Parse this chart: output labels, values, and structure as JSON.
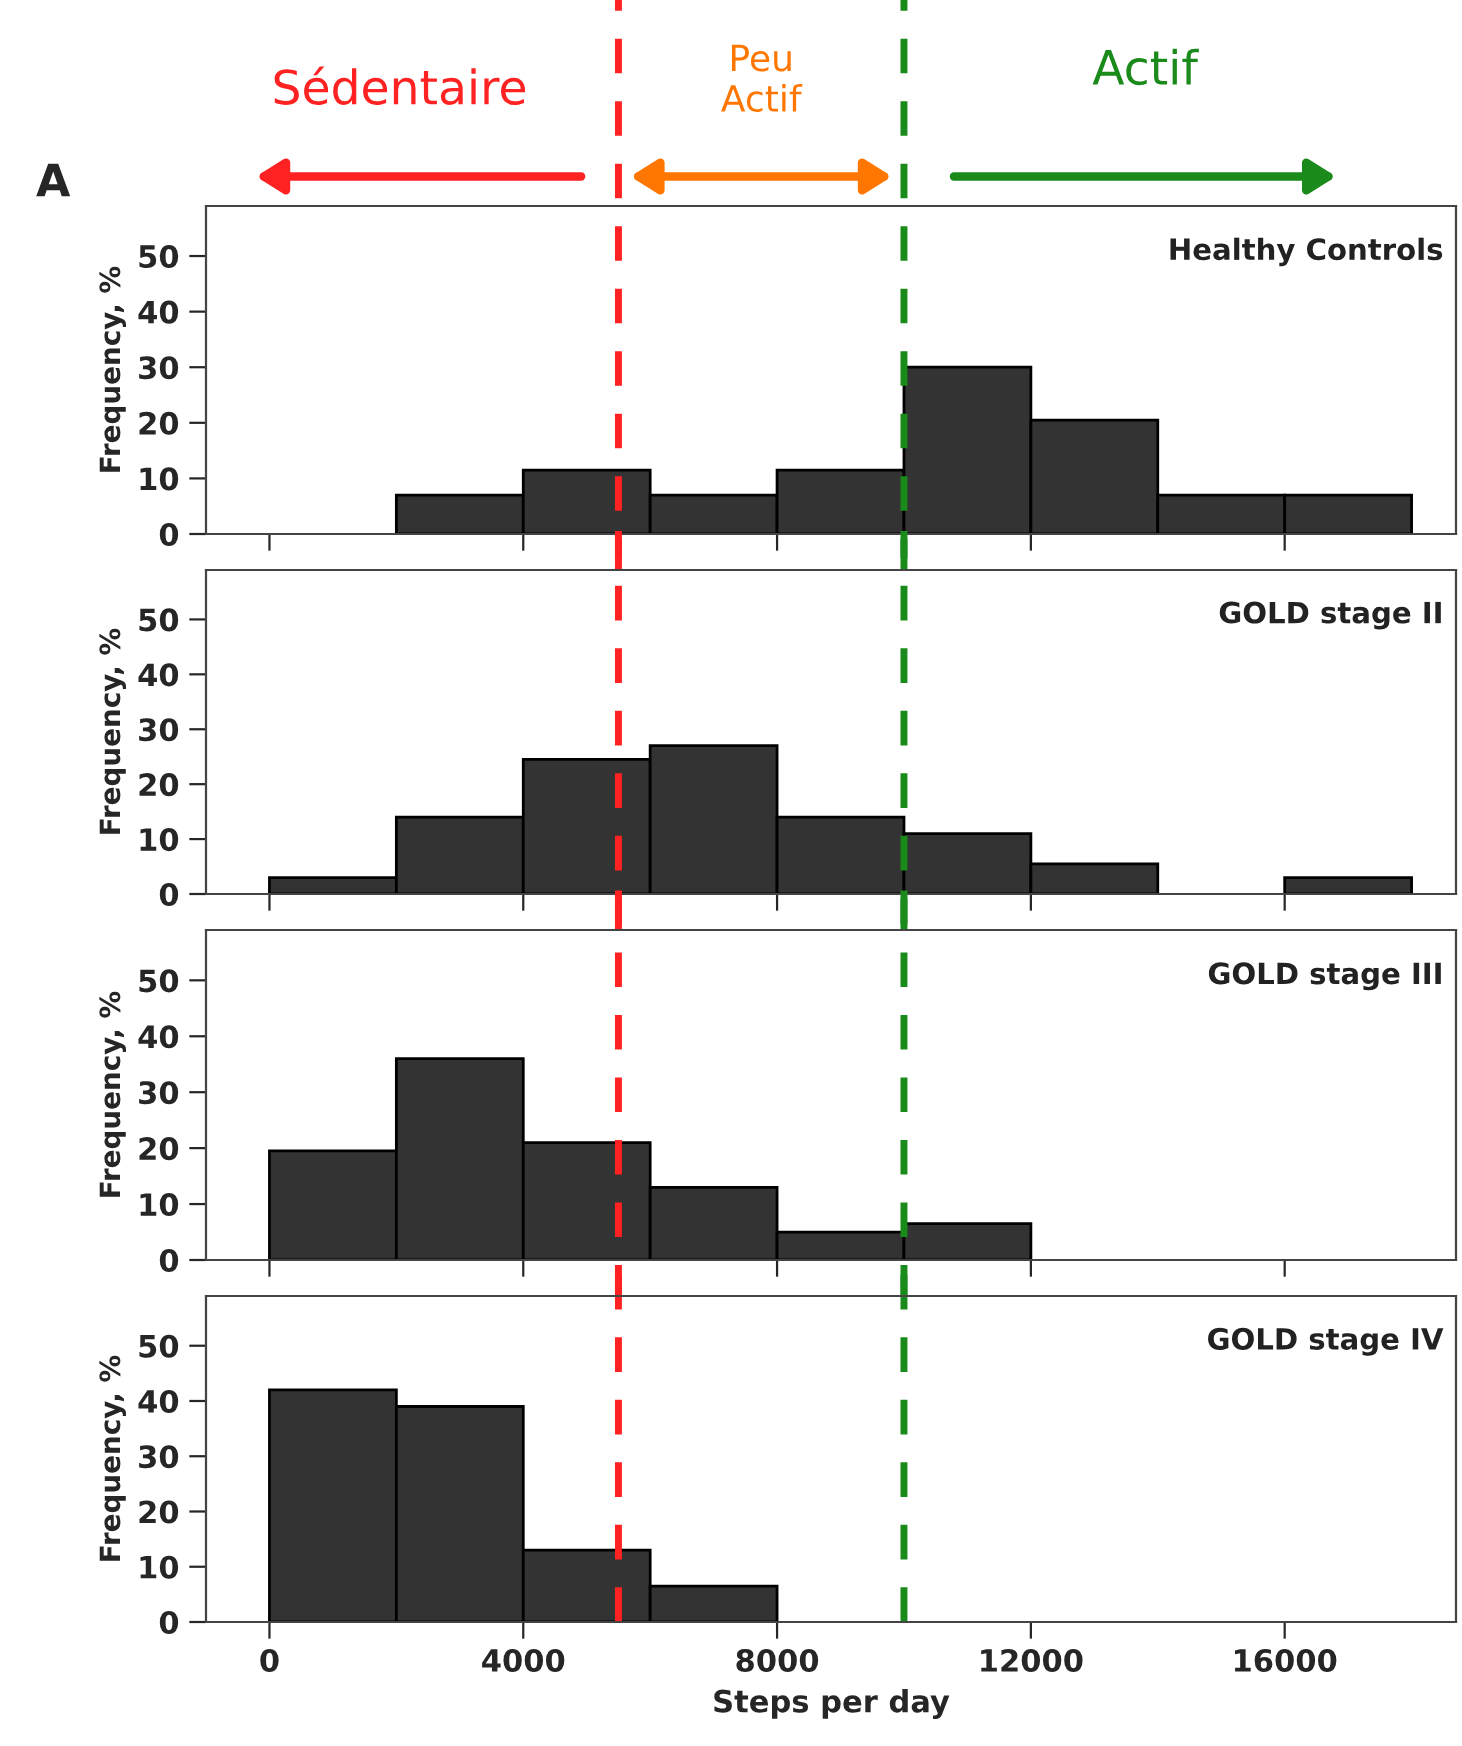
{
  "chart_data": [
    {
      "type": "histogram",
      "title": "Healthy Controls",
      "ylabel": "Frequency, %",
      "bins": [
        0,
        2000,
        4000,
        6000,
        8000,
        10000,
        12000,
        14000,
        16000,
        18000
      ],
      "values": [
        0,
        7,
        11.5,
        7,
        11.5,
        30,
        20.5,
        7,
        7
      ],
      "color": "#333333",
      "xlim": [
        -1000,
        18700
      ],
      "ylim": [
        0,
        59
      ],
      "xticks": [
        {
          "value": 0,
          "label": null
        },
        {
          "value": 4000,
          "label": null
        },
        {
          "value": 8000,
          "label": null
        },
        {
          "value": 12000,
          "label": null
        },
        {
          "value": 16000,
          "label": null
        }
      ],
      "yticks": [
        0,
        10,
        20,
        30,
        40,
        50
      ],
      "tick_labels": "y",
      "grid": false,
      "ref_lines": [
        {
          "axis": "x",
          "value": 5500,
          "color": "#ff2222",
          "line_style": "dashed"
        },
        {
          "axis": "x",
          "value": 10000,
          "color": "#1a8a1a",
          "line_style": "dashed"
        }
      ],
      "annotations": [
        "A",
        "Sédentaire",
        "Peu\nActif",
        "Actif"
      ]
    },
    {
      "type": "histogram",
      "title": "GOLD stage II",
      "ylabel": "Frequency, %",
      "bins": [
        0,
        2000,
        4000,
        6000,
        8000,
        10000,
        12000,
        14000,
        16000,
        18000
      ],
      "values": [
        3,
        14,
        24.5,
        27,
        14,
        11,
        5.5,
        0,
        3
      ],
      "color": "#333333",
      "xlim": [
        -1000,
        18700
      ],
      "ylim": [
        0,
        59
      ],
      "xticks": [
        {
          "value": 0,
          "label": null
        },
        {
          "value": 4000,
          "label": null
        },
        {
          "value": 8000,
          "label": null
        },
        {
          "value": 12000,
          "label": null
        },
        {
          "value": 16000,
          "label": null
        }
      ],
      "yticks": [
        0,
        10,
        20,
        30,
        40,
        50
      ],
      "tick_labels": "y",
      "grid": false,
      "ref_lines": [
        {
          "axis": "x",
          "value": 5500,
          "color": "#ff2222",
          "line_style": "dashed"
        },
        {
          "axis": "x",
          "value": 10000,
          "color": "#1a8a1a",
          "line_style": "dashed"
        }
      ]
    },
    {
      "type": "histogram",
      "title": "GOLD stage III",
      "ylabel": "Frequency, %",
      "bins": [
        0,
        2000,
        4000,
        6000,
        8000,
        10000,
        12000,
        14000,
        16000,
        18000
      ],
      "values": [
        19.5,
        36,
        21,
        13,
        5,
        6.5,
        0,
        0,
        0
      ],
      "color": "#333333",
      "xlim": [
        -1000,
        18700
      ],
      "ylim": [
        0,
        59
      ],
      "xticks": [
        {
          "value": 0,
          "label": null
        },
        {
          "value": 4000,
          "label": null
        },
        {
          "value": 8000,
          "label": null
        },
        {
          "value": 12000,
          "label": null
        },
        {
          "value": 16000,
          "label": null
        }
      ],
      "yticks": [
        0,
        10,
        20,
        30,
        40,
        50
      ],
      "tick_labels": "y",
      "grid": false,
      "ref_lines": [
        {
          "axis": "x",
          "value": 5500,
          "color": "#ff2222",
          "line_style": "dashed"
        },
        {
          "axis": "x",
          "value": 10000,
          "color": "#1a8a1a",
          "line_style": "dashed"
        }
      ]
    },
    {
      "type": "histogram",
      "title": "GOLD stage IV",
      "ylabel": "Frequency, %",
      "xlabel": "Steps per day",
      "bins": [
        0,
        2000,
        4000,
        6000,
        8000,
        10000,
        12000,
        14000,
        16000,
        18000
      ],
      "values": [
        42,
        39,
        13,
        6.5,
        0,
        0,
        0,
        0,
        0
      ],
      "color": "#333333",
      "xlim": [
        -1000,
        18700
      ],
      "ylim": [
        0,
        59
      ],
      "xticks": [
        0,
        4000,
        8000,
        12000,
        16000
      ],
      "yticks": [
        0,
        10,
        20,
        30,
        40,
        50
      ],
      "grid": false,
      "ref_lines": [
        {
          "axis": "x",
          "value": 5500,
          "color": "#ff2222",
          "line_style": "dashed"
        },
        {
          "axis": "x",
          "value": 10000,
          "color": "#1a8a1a",
          "line_style": "dashed"
        }
      ]
    }
  ]
}
